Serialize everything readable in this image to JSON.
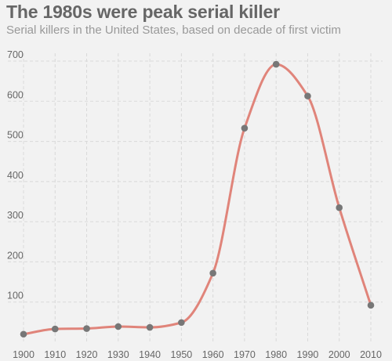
{
  "chart_data": {
    "type": "line",
    "title": "The 1980s were peak serial killer",
    "subtitle": "Serial killers in the United States, based on decade of first victim",
    "xlabel": "",
    "ylabel": "",
    "x": [
      1900,
      1910,
      1920,
      1930,
      1940,
      1950,
      1960,
      1970,
      1980,
      1990,
      2000,
      2010
    ],
    "series": [
      {
        "values": [
          20,
          33,
          34,
          39,
          37,
          49,
          172,
          533,
          692,
          613,
          335,
          92
        ]
      }
    ],
    "x_ticks": [
      "1900",
      "1910",
      "1920",
      "1930",
      "1940",
      "1950",
      "1960",
      "1970",
      "1980",
      "1990",
      "2000",
      "2010"
    ],
    "y_ticks": [
      "100",
      "200",
      "300",
      "400",
      "500",
      "600",
      "700"
    ],
    "xlim": [
      1900,
      2010
    ],
    "ylim": [
      0,
      700
    ],
    "grid": true,
    "legend": "none",
    "colors": {
      "line": "#e0847a",
      "point": "#777777",
      "grid": "#d9d9d9",
      "axis_text": "#666666",
      "background": "#f2f2f2"
    }
  }
}
